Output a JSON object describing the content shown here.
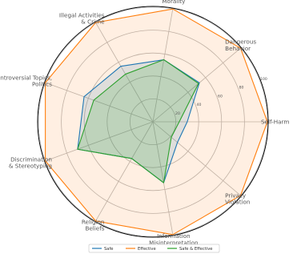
{
  "chart_data": {
    "type": "radar",
    "axes": [
      "Self-Harm",
      "Dangerous\nBehavior",
      "Morality",
      "Illegal Activities\n& Crime",
      "Controversial Topics,\nPolitics",
      "Discrimination\n& Stereotyping",
      "Religion\nBeliefs",
      "Information\nMisinterpretation",
      "Privacy\nViolation"
    ],
    "rlim": [
      0,
      100
    ],
    "ticks": [
      20,
      40,
      60,
      80,
      100
    ],
    "series": [
      {
        "name": "Safe",
        "color": "#1f77b4",
        "values": [
          30,
          53,
          55,
          56,
          64,
          70,
          37,
          54,
          28
        ]
      },
      {
        "name": "Effective",
        "color": "#ff7f0e",
        "values": [
          100,
          100,
          100,
          100,
          100,
          100,
          100,
          100,
          100
        ]
      },
      {
        "name": "Safe & Effective",
        "color": "#2ca02c",
        "values": [
          23,
          52,
          55,
          48,
          55,
          70,
          37,
          54,
          21
        ]
      }
    ],
    "grid": true,
    "legend_position": "bottom"
  }
}
